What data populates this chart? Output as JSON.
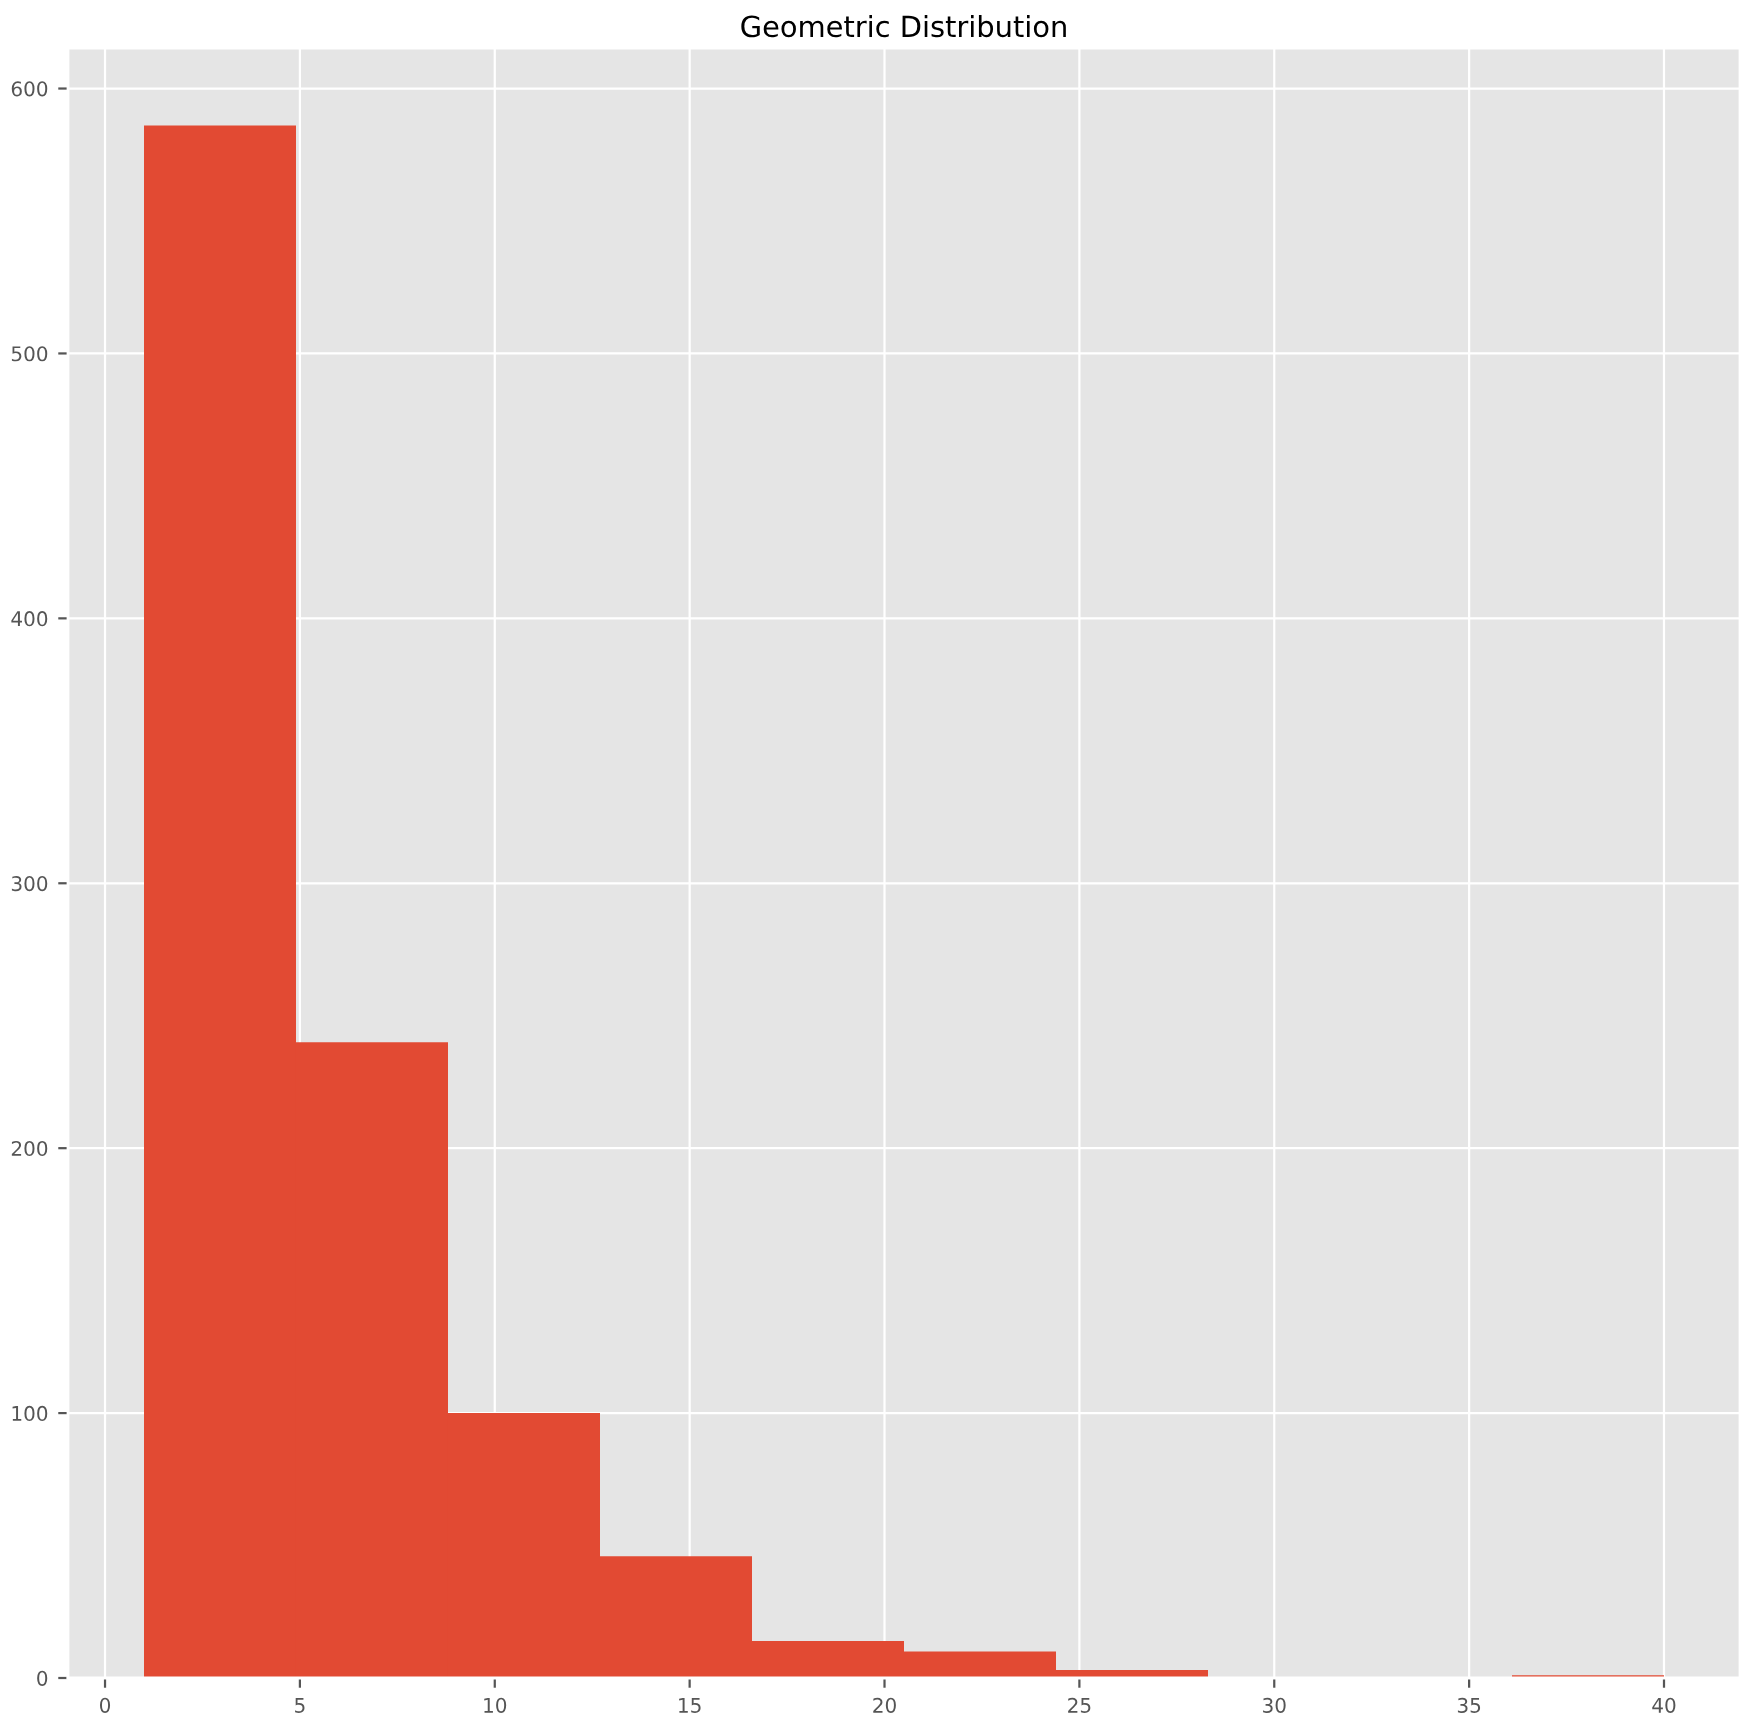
{
  "chart_data": {
    "type": "histogram",
    "title": "Geometric Distribution",
    "bins": [
      1,
      4.9,
      8.8,
      12.7,
      16.6,
      20.5,
      24.4,
      28.3,
      32.2,
      36.1,
      40
    ],
    "values": [
      586,
      240,
      100,
      46,
      14,
      10,
      3,
      0,
      0,
      1
    ],
    "color": "#e24a33",
    "xlim": [
      -0.95,
      41.95
    ],
    "ylim": [
      0,
      615.3
    ],
    "xticks": [
      0,
      5,
      10,
      15,
      20,
      25,
      30,
      35,
      40
    ],
    "yticks": [
      0,
      100,
      200,
      300,
      400,
      500,
      600
    ],
    "grid": true
  }
}
